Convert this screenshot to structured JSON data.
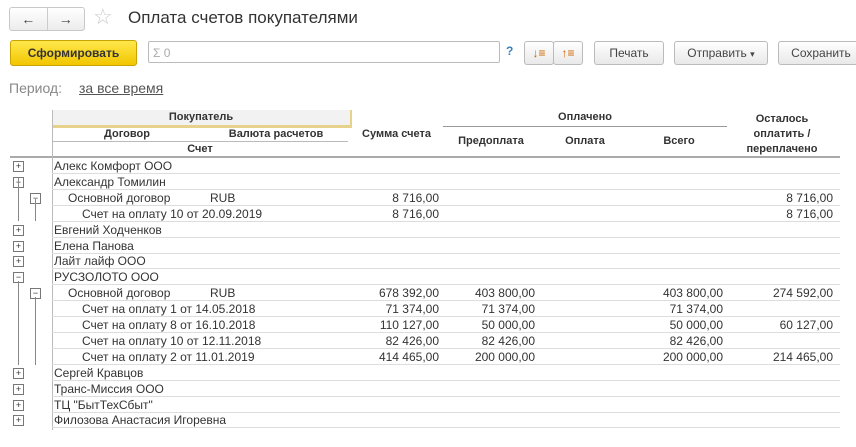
{
  "title": "Оплата счетов покупателями",
  "toolbar": {
    "generate": "Сформировать",
    "sum_value": "Σ 0",
    "help": "?",
    "print": "Печать",
    "send": "Отправить",
    "send_arrow": "▾",
    "save": "Сохранить"
  },
  "period": {
    "label": "Период:",
    "value": "за все время"
  },
  "headers": {
    "buyer": "Покупатель",
    "contract": "Договор",
    "currency": "Валюта расчетов",
    "invoice": "Счет",
    "sum": "Сумма счета",
    "paid": "Оплачено",
    "prepay": "Предоплата",
    "payment": "Оплата",
    "total": "Всего",
    "remaining": "Осталось оплатить / переплачено"
  },
  "rows": [
    {
      "level": 0,
      "toggle": "+",
      "name": "Алекс Комфорт ООО"
    },
    {
      "level": 0,
      "toggle": "−",
      "name": "Александр Томилин"
    },
    {
      "level": 1,
      "toggle": "−",
      "name": "Основной договор",
      "currency": "RUB",
      "sum": "8 716,00",
      "remaining": "8 716,00"
    },
    {
      "level": 2,
      "name": "Счет на оплату 10 от 20.09.2019",
      "sum": "8 716,00",
      "remaining": "8 716,00"
    },
    {
      "level": 0,
      "toggle": "+",
      "name": "Евгений Ходченков"
    },
    {
      "level": 0,
      "toggle": "+",
      "name": "Елена Панова"
    },
    {
      "level": 0,
      "toggle": "+",
      "name": "Лайт лайф ООО"
    },
    {
      "level": 0,
      "toggle": "−",
      "name": "РУСЗОЛОТО ООО"
    },
    {
      "level": 1,
      "toggle": "−",
      "name": "Основной договор",
      "currency": "RUB",
      "sum": "678 392,00",
      "prepay": "403 800,00",
      "total": "403 800,00",
      "remaining": "274 592,00"
    },
    {
      "level": 2,
      "name": "Счет на оплату 1 от 14.05.2018",
      "sum": "71 374,00",
      "prepay": "71 374,00",
      "total": "71 374,00"
    },
    {
      "level": 2,
      "name": "Счет на оплату 8 от 16.10.2018",
      "sum": "110 127,00",
      "prepay": "50 000,00",
      "total": "50 000,00",
      "remaining": "60 127,00"
    },
    {
      "level": 2,
      "name": "Счет на оплату 10 от 12.11.2018",
      "sum": "82 426,00",
      "prepay": "82 426,00",
      "total": "82 426,00"
    },
    {
      "level": 2,
      "name": "Счет на оплату 2 от 11.01.2019",
      "sum": "414 465,00",
      "prepay": "200 000,00",
      "total": "200 000,00",
      "remaining": "214 465,00"
    },
    {
      "level": 0,
      "toggle": "+",
      "name": "Сергей Кравцов"
    },
    {
      "level": 0,
      "toggle": "+",
      "name": "Транс-Миссия ООО"
    },
    {
      "level": 0,
      "toggle": "+",
      "name": "ТЦ \"БытТехСбыт\""
    },
    {
      "level": 0,
      "toggle": "+",
      "name": "Филозова Анастасия Игоревна"
    }
  ]
}
